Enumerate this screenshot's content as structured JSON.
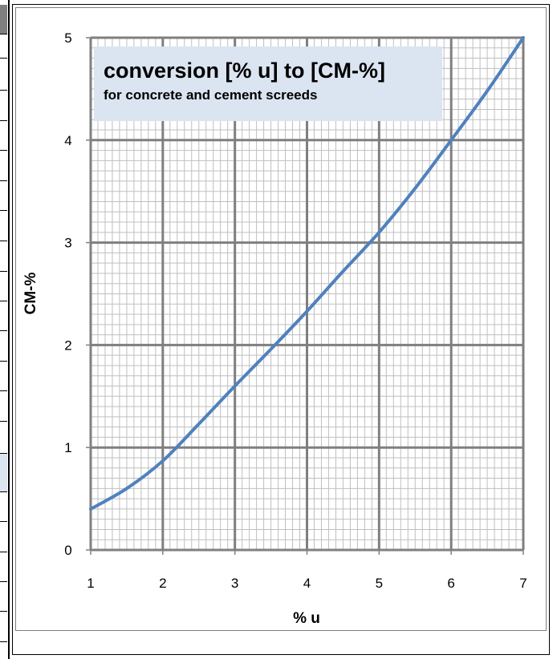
{
  "chart_data": {
    "type": "line",
    "title": "conversion [% u] to [CM-%]",
    "subtitle": "for concrete and cement screeds",
    "xlabel": "% u",
    "ylabel": "CM-%",
    "xlim": [
      1,
      7
    ],
    "ylim": [
      0,
      5
    ],
    "xticks": [
      "1",
      "2",
      "3",
      "4",
      "5",
      "6",
      "7"
    ],
    "yticks": [
      "0",
      "1",
      "2",
      "3",
      "4",
      "5"
    ],
    "grid": true,
    "legend": "none",
    "series": [
      {
        "color": "#4f81bd",
        "x": [
          1.0,
          1.5,
          2.0,
          2.5,
          3.0,
          3.5,
          4.0,
          4.5,
          5.0,
          5.5,
          6.0,
          6.5,
          7.0
        ],
        "y": [
          0.4,
          0.6,
          0.87,
          1.23,
          1.6,
          1.96,
          2.33,
          2.72,
          3.1,
          3.53,
          4.0,
          4.48,
          5.0
        ]
      }
    ]
  }
}
